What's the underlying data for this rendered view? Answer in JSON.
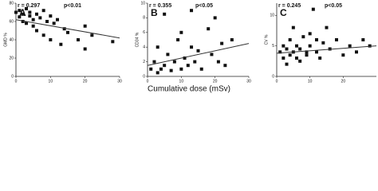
{
  "xlabel": "Cumulative dose (mSv)",
  "chart_data": [
    {
      "type": "scatter",
      "label": "A",
      "r_text": "r = 0.297",
      "p_text": "p<0.01",
      "ylabel": "GMD %",
      "color": "#111111",
      "x": [
        0,
        1,
        1,
        2,
        2,
        3,
        3,
        4,
        4,
        5,
        5,
        6,
        6,
        7,
        8,
        8,
        9,
        10,
        10,
        11,
        12,
        13,
        14,
        15,
        18,
        20,
        20,
        22,
        28
      ],
      "values": [
        70,
        65,
        72,
        60,
        68,
        74,
        58,
        66,
        70,
        55,
        62,
        68,
        50,
        64,
        72,
        45,
        60,
        66,
        40,
        58,
        62,
        35,
        52,
        48,
        40,
        55,
        30,
        45,
        38
      ],
      "trend": {
        "x": [
          0,
          30
        ],
        "values": [
          62,
          42
        ]
      },
      "xlim": [
        0,
        30
      ],
      "ylim": [
        0,
        80
      ],
      "xticks": [
        0,
        10,
        20,
        30
      ],
      "yticks": [
        0,
        20,
        40,
        60,
        80
      ]
    },
    {
      "type": "scatter",
      "label": "B",
      "r_text": "r = 0.355",
      "p_text": "p<0.05",
      "ylabel": "CD34 %",
      "color": "#111111",
      "x": [
        1,
        2,
        3,
        3,
        4,
        5,
        5,
        6,
        7,
        8,
        9,
        10,
        10,
        11,
        12,
        13,
        13,
        14,
        15,
        16,
        18,
        19,
        20,
        21,
        22,
        23,
        25
      ],
      "values": [
        1,
        2,
        0.5,
        4,
        1,
        8.5,
        1.5,
        3,
        0.8,
        2,
        5,
        1,
        6,
        2.5,
        1.5,
        4,
        9,
        2,
        3.5,
        1,
        6.5,
        3,
        8,
        2,
        4.5,
        1.5,
        5
      ],
      "trend": {
        "x": [
          0,
          30
        ],
        "values": [
          1.5,
          4.5
        ]
      },
      "xlim": [
        0,
        30
      ],
      "ylim": [
        0,
        10
      ],
      "xticks": [
        0,
        10,
        20,
        30
      ],
      "yticks": [
        0,
        2,
        4,
        6,
        8,
        10
      ]
    },
    {
      "type": "scatter",
      "label": "C",
      "r_text": "r = 0.245",
      "p_text": "p<0.05",
      "ylabel": "CV %",
      "color": "#111111",
      "x": [
        1,
        2,
        2,
        3,
        3,
        4,
        4,
        5,
        5,
        6,
        6,
        7,
        7,
        8,
        9,
        9,
        10,
        10,
        11,
        12,
        12,
        13,
        14,
        15,
        16,
        18,
        20,
        22,
        24,
        26,
        28
      ],
      "values": [
        4,
        3,
        5,
        4.5,
        2,
        6,
        3.5,
        4,
        8,
        3,
        5,
        4.5,
        2.5,
        6.5,
        3.5,
        4,
        7,
        5,
        11,
        4,
        6,
        3,
        5.5,
        8,
        4.5,
        6,
        3.5,
        5,
        4,
        6,
        5
      ],
      "trend": {
        "x": [
          0,
          30
        ],
        "values": [
          3.8,
          5.0
        ]
      },
      "xlim": [
        0,
        30
      ],
      "ylim": [
        0,
        12
      ],
      "xticks": [
        0,
        10,
        20
      ],
      "yticks": [
        0,
        5,
        10
      ]
    }
  ]
}
